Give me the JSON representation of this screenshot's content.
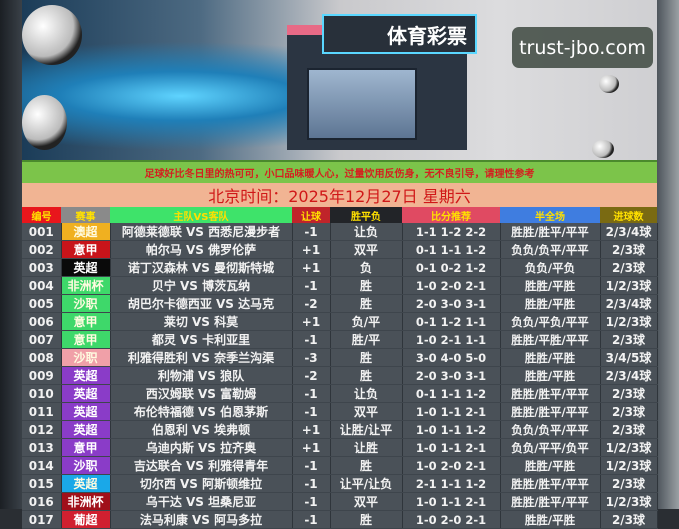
{
  "banner": {
    "sign": "体育彩票",
    "watermark": "trust-jbo.com"
  },
  "notice": "足球好比冬日里的热可可，小口品味暖人心，过量饮用反伤身，无不良引导，请理性参考",
  "date": "北京时间：2025年12月27日  星期六",
  "headers": [
    {
      "label": "编号",
      "bg": "#e8161c",
      "color": "#ffe000"
    },
    {
      "label": "赛事",
      "bg": "#8a8a8a",
      "color": "#ffe000"
    },
    {
      "label": "主队VS客队",
      "bg": "#3ee36a",
      "color": "#ffe000"
    },
    {
      "label": "让球",
      "bg": "#c0242a",
      "color": "#ffe000"
    },
    {
      "label": "胜平负",
      "bg": "#222428",
      "color": "#ffe000"
    },
    {
      "label": "比分推荐",
      "bg": "#e04a62",
      "color": "#ffe000"
    },
    {
      "label": "半全场",
      "bg": "#3f7de0",
      "color": "#ffe000"
    },
    {
      "label": "进球数",
      "bg": "#7a6a12",
      "color": "#ffe000"
    }
  ],
  "rows": [
    {
      "no": "001",
      "league": "澳超",
      "lc": "#f0b020",
      "match": "阿德莱德联 VS 西悉尼漫步者",
      "hcp": "-1",
      "res": "让负",
      "score": "1-1 1-2 2-2",
      "hf": "胜胜/胜平/平平",
      "goals": "2/3/4球"
    },
    {
      "no": "002",
      "league": "意甲",
      "lc": "#c8141a",
      "match": "帕尔马 VS 佛罗伦萨",
      "hcp": "+1",
      "res": "双平",
      "score": "0-1 1-1 1-2",
      "hf": "负负/负平/平平",
      "goals": "2/3球"
    },
    {
      "no": "003",
      "league": "英超",
      "lc": "#0a0a0a",
      "match": "诺丁汉森林 VS 曼彻斯特城",
      "hcp": "+1",
      "res": "负",
      "score": "0-1 0-2 1-2",
      "hf": "负负/平负",
      "goals": "2/3球"
    },
    {
      "no": "004",
      "league": "非洲杯",
      "lc": "#3ed86a",
      "match": "贝宁 VS 博茨瓦纳",
      "hcp": "-1",
      "res": "胜",
      "score": "1-0 2-0 2-1",
      "hf": "胜胜/平胜",
      "goals": "1/2/3球"
    },
    {
      "no": "005",
      "league": "沙职",
      "lc": "#3ed86a",
      "match": "胡巴尔卡德西亚 VS 达马克",
      "hcp": "-2",
      "res": "胜",
      "score": "2-0 3-0 3-1",
      "hf": "胜胜/平胜",
      "goals": "2/3/4球"
    },
    {
      "no": "006",
      "league": "意甲",
      "lc": "#3ed86a",
      "match": "莱切 VS 科莫",
      "hcp": "+1",
      "res": "负/平",
      "score": "0-1 1-2 1-1",
      "hf": "负负/平负/平平",
      "goals": "1/2/3球"
    },
    {
      "no": "007",
      "league": "意甲",
      "lc": "#3ed86a",
      "match": "都灵 VS 卡利亚里",
      "hcp": "-1",
      "res": "胜/平",
      "score": "1-0 2-1 1-1",
      "hf": "胜胜/平胜/平平",
      "goals": "2/3球"
    },
    {
      "no": "008",
      "league": "沙职",
      "lc": "#f0a0a8",
      "match": "利雅得胜利 VS 奈季兰沟渠",
      "hcp": "-3",
      "res": "胜",
      "score": "3-0 4-0 5-0",
      "hf": "胜胜/平胜",
      "goals": "3/4/5球"
    },
    {
      "no": "009",
      "league": "英超",
      "lc": "#8a3cc8",
      "match": "利物浦 VS 狼队",
      "hcp": "-2",
      "res": "胜",
      "score": "2-0 3-0 3-1",
      "hf": "胜胜/平胜",
      "goals": "2/3/4球"
    },
    {
      "no": "010",
      "league": "英超",
      "lc": "#8a3cc8",
      "match": "西汉姆联 VS 富勒姆",
      "hcp": "-1",
      "res": "让负",
      "score": "0-1 1-1 1-2",
      "hf": "胜胜/胜平/平平",
      "goals": "2/3球"
    },
    {
      "no": "011",
      "league": "英超",
      "lc": "#8a3cc8",
      "match": "布伦特福德 VS 伯恩茅斯",
      "hcp": "-1",
      "res": "双平",
      "score": "1-0 1-1 2-1",
      "hf": "胜胜/胜平/平平",
      "goals": "2/3球"
    },
    {
      "no": "012",
      "league": "英超",
      "lc": "#8a3cc8",
      "match": "伯恩利 VS 埃弗顿",
      "hcp": "+1",
      "res": "让胜/让平",
      "score": "1-0 1-1 1-2",
      "hf": "负负/负平/平平",
      "goals": "2/3球"
    },
    {
      "no": "013",
      "league": "意甲",
      "lc": "#8a3cc8",
      "match": "乌迪内斯 VS 拉齐奥",
      "hcp": "+1",
      "res": "让胜",
      "score": "1-0 1-1 2-1",
      "hf": "负负/平平/负平",
      "goals": "1/2/3球"
    },
    {
      "no": "014",
      "league": "沙职",
      "lc": "#8a3cc8",
      "match": "吉达联合 VS 利雅得青年",
      "hcp": "-1",
      "res": "胜",
      "score": "1-0 2-0 2-1",
      "hf": "胜胜/平胜",
      "goals": "1/2/3球"
    },
    {
      "no": "015",
      "league": "英超",
      "lc": "#1aa8e8",
      "match": "切尔西 VS 阿斯顿维拉",
      "hcp": "-1",
      "res": "让平/让负",
      "score": "2-1 1-1 1-2",
      "hf": "胜胜/胜平/平平",
      "goals": "2/3球"
    },
    {
      "no": "016",
      "league": "非洲杯",
      "lc": "#a0101a",
      "match": "乌干达 VS 坦桑尼亚",
      "hcp": "-1",
      "res": "双平",
      "score": "1-0 1-1 2-1",
      "hf": "胜胜/胜平/平平",
      "goals": "1/2/3球"
    },
    {
      "no": "017",
      "league": "葡超",
      "lc": "#d02030",
      "match": "法马利康 VS 阿马多拉",
      "hcp": "-1",
      "res": "胜",
      "score": "1-0 2-0 2-1",
      "hf": "胜胜/平胜",
      "goals": "2/3球"
    }
  ]
}
